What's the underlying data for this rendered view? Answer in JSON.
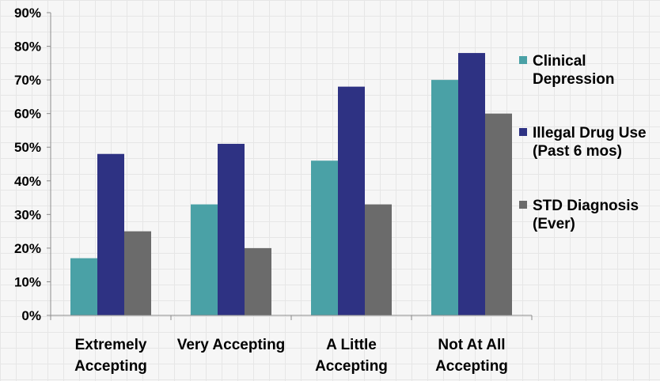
{
  "chart_data": {
    "type": "bar",
    "categories": [
      "Extremely\nAccepting",
      "Very Accepting",
      "A Little\nAccepting",
      "Not At All\nAccepting"
    ],
    "series": [
      {
        "name": "Clinical\nDepression",
        "color": "#4aa1a6",
        "values": [
          17,
          33,
          46,
          70
        ]
      },
      {
        "name": "Illegal Drug Use\n(Past 6 mos)",
        "color": "#2e3283",
        "values": [
          48,
          51,
          68,
          78
        ]
      },
      {
        "name": "STD Diagnosis\n(Ever)",
        "color": "#6b6b6b",
        "values": [
          25,
          20,
          33,
          60
        ]
      }
    ],
    "yticks": [
      "0%",
      "10%",
      "20%",
      "30%",
      "40%",
      "50%",
      "60%",
      "70%",
      "80%",
      "90%"
    ],
    "ylim": [
      0,
      90
    ],
    "grid": false,
    "legend": "right",
    "title": "",
    "xlabel": "",
    "ylabel": ""
  }
}
